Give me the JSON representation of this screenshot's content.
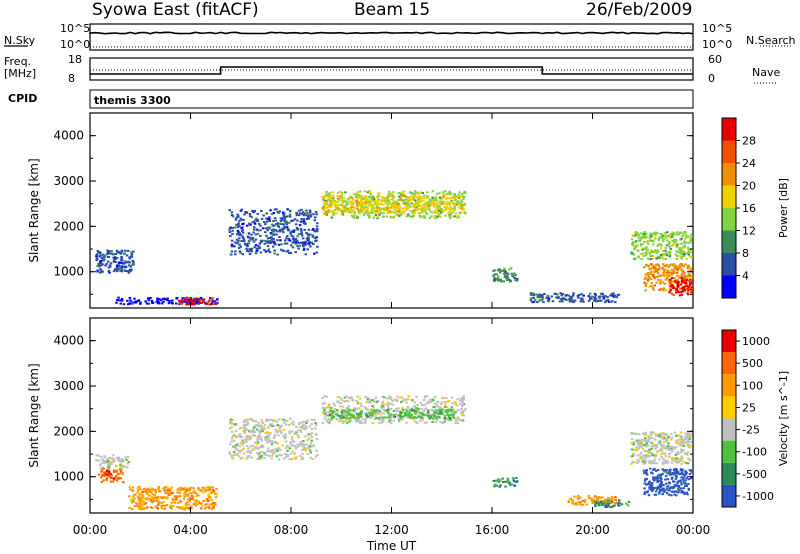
{
  "header": {
    "left": "Syowa East (fitACF)",
    "center": "Beam 15",
    "right": "26/Feb/2009"
  },
  "status_panels": {
    "nsky_label": "N.Sky",
    "nsky_ticks": [
      "10^5",
      "10^0"
    ],
    "nsearch_label": "N.Search",
    "nsearch_ticks": [
      "10^5",
      "10^0"
    ],
    "freq_label_line1": "Freq.",
    "freq_label_line2": "[MHz]",
    "freq_ticks": [
      "18",
      "8"
    ],
    "nave_label": "Nave",
    "nave_ticks": [
      "60",
      "0"
    ],
    "cpid_label": "CPID",
    "cpid_value": "themis 3300"
  },
  "chart_data": [
    {
      "type": "heatmap",
      "parameter": "power",
      "ylabel": "Slant Range [km]",
      "yticks": [
        "1000",
        "2000",
        "3000",
        "4000"
      ],
      "ylim": [
        200,
        4500
      ],
      "colorbar_label": "Power [dB]",
      "colorbar_ticks": [
        "4",
        "8",
        "12",
        "16",
        "20",
        "24",
        "28"
      ],
      "colorbar_colors": [
        "#0000ff",
        "#2a4ea8",
        "#3c8c5a",
        "#7fd440",
        "#f0d000",
        "#f09000",
        "#f05000",
        "#e80000"
      ],
      "scatter_regions": [
        {
          "x": [
            0.2,
            1.7
          ],
          "y": [
            1000,
            1500
          ],
          "level": 1
        },
        {
          "x": [
            1.0,
            5.2
          ],
          "y": [
            300,
            450
          ],
          "level": 0
        },
        {
          "x": [
            3.5,
            5.0
          ],
          "y": [
            300,
            450
          ],
          "level": 7
        },
        {
          "x": [
            5.5,
            9.0
          ],
          "y": [
            1400,
            2400
          ],
          "level": 1
        },
        {
          "x": [
            9.2,
            14.9
          ],
          "y": [
            2200,
            2800
          ],
          "level": 3
        },
        {
          "x": [
            9.2,
            14.9
          ],
          "y": [
            2300,
            2700
          ],
          "level": 4
        },
        {
          "x": [
            16.0,
            17.0
          ],
          "y": [
            800,
            1100
          ],
          "level": 2
        },
        {
          "x": [
            17.5,
            21.0
          ],
          "y": [
            350,
            550
          ],
          "level": 1
        },
        {
          "x": [
            21.5,
            23.9
          ],
          "y": [
            1300,
            1900
          ],
          "level": 3
        },
        {
          "x": [
            22.0,
            23.9
          ],
          "y": [
            600,
            1200
          ],
          "level": 5
        },
        {
          "x": [
            23.0,
            23.9
          ],
          "y": [
            500,
            900
          ],
          "level": 7
        }
      ]
    },
    {
      "type": "heatmap",
      "parameter": "velocity",
      "ylabel": "Slant Range [km]",
      "yticks": [
        "1000",
        "2000",
        "3000",
        "4000"
      ],
      "ylim": [
        200,
        4500
      ],
      "colorbar_label": "Velocity [m s^-1]",
      "colorbar_ticks": [
        "1000",
        "500",
        "100",
        "25",
        "-25",
        "-100",
        "-500",
        "-1000"
      ],
      "colorbar_colors": [
        "#2a52c8",
        "#2e8b57",
        "#50c040",
        "#c0c0c0",
        "#ffcc00",
        "#ff9900",
        "#ff6600",
        "#e80000"
      ],
      "scatter_regions": [
        {
          "x": [
            0.2,
            1.5
          ],
          "y": [
            1200,
            1500
          ],
          "level": 3
        },
        {
          "x": [
            0.3,
            1.3
          ],
          "y": [
            900,
            1200
          ],
          "level": 6
        },
        {
          "x": [
            1.5,
            5.0
          ],
          "y": [
            300,
            800
          ],
          "level": 5
        },
        {
          "x": [
            5.5,
            9.0
          ],
          "y": [
            1400,
            2300
          ],
          "level": 3
        },
        {
          "x": [
            9.2,
            14.9
          ],
          "y": [
            2200,
            2800
          ],
          "level": 3
        },
        {
          "x": [
            9.5,
            14.5
          ],
          "y": [
            2300,
            2500
          ],
          "level": 2
        },
        {
          "x": [
            16.0,
            17.0
          ],
          "y": [
            800,
            1000
          ],
          "level": 1
        },
        {
          "x": [
            19.0,
            21.0
          ],
          "y": [
            400,
            600
          ],
          "level": 5
        },
        {
          "x": [
            20.0,
            21.5
          ],
          "y": [
            350,
            500
          ],
          "level": 1
        },
        {
          "x": [
            21.5,
            23.9
          ],
          "y": [
            1300,
            2000
          ],
          "level": 3
        },
        {
          "x": [
            22.0,
            23.9
          ],
          "y": [
            600,
            1200
          ],
          "level": 0
        }
      ]
    }
  ],
  "xaxis": {
    "label": "Time UT",
    "ticks": [
      "00:00",
      "04:00",
      "08:00",
      "12:00",
      "16:00",
      "20:00",
      "00:00"
    ],
    "range_hours": [
      0,
      24
    ]
  }
}
